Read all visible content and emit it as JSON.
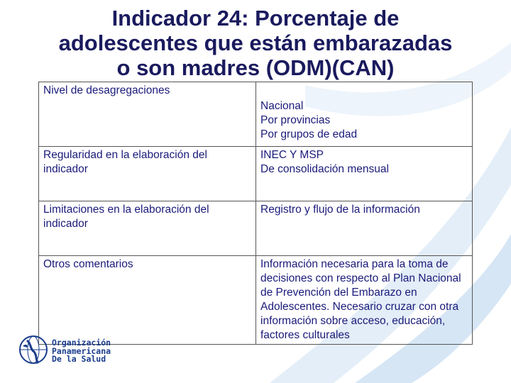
{
  "title": {
    "lines": [
      "Indicador 24: Porcentaje de",
      "adolescentes que están embarazadas",
      "o son madres (ODM)(CAN)"
    ]
  },
  "table": {
    "rows": [
      {
        "label": "Nivel de desagregaciones",
        "value_lines": [
          "Nacional",
          "Por provincias",
          "Por grupos de edad"
        ]
      },
      {
        "label": "Regularidad en la elaboración del indicador",
        "value_lines": [
          "INEC Y MSP",
          "De consolidación mensual"
        ]
      },
      {
        "label": "Limitaciones en la elaboración del indicador",
        "value_lines": [
          "Registro y flujo de la información"
        ]
      },
      {
        "label": "Otros comentarios",
        "value_lines": [
          "Información necesaria para la toma de decisiones con respecto al Plan Nacional de Prevención del Embarazo en Adolescentes. Necesario cruzar con otra información sobre acceso, educación, factores culturales"
        ]
      }
    ]
  },
  "logo": {
    "lines": [
      "Organización",
      "Panamericana",
      "De la Salud"
    ],
    "icon": "globe-icon"
  },
  "colors": {
    "title": "#1a1a5e",
    "text": "#1a1a7a",
    "swirl": "#dbe9f6"
  }
}
